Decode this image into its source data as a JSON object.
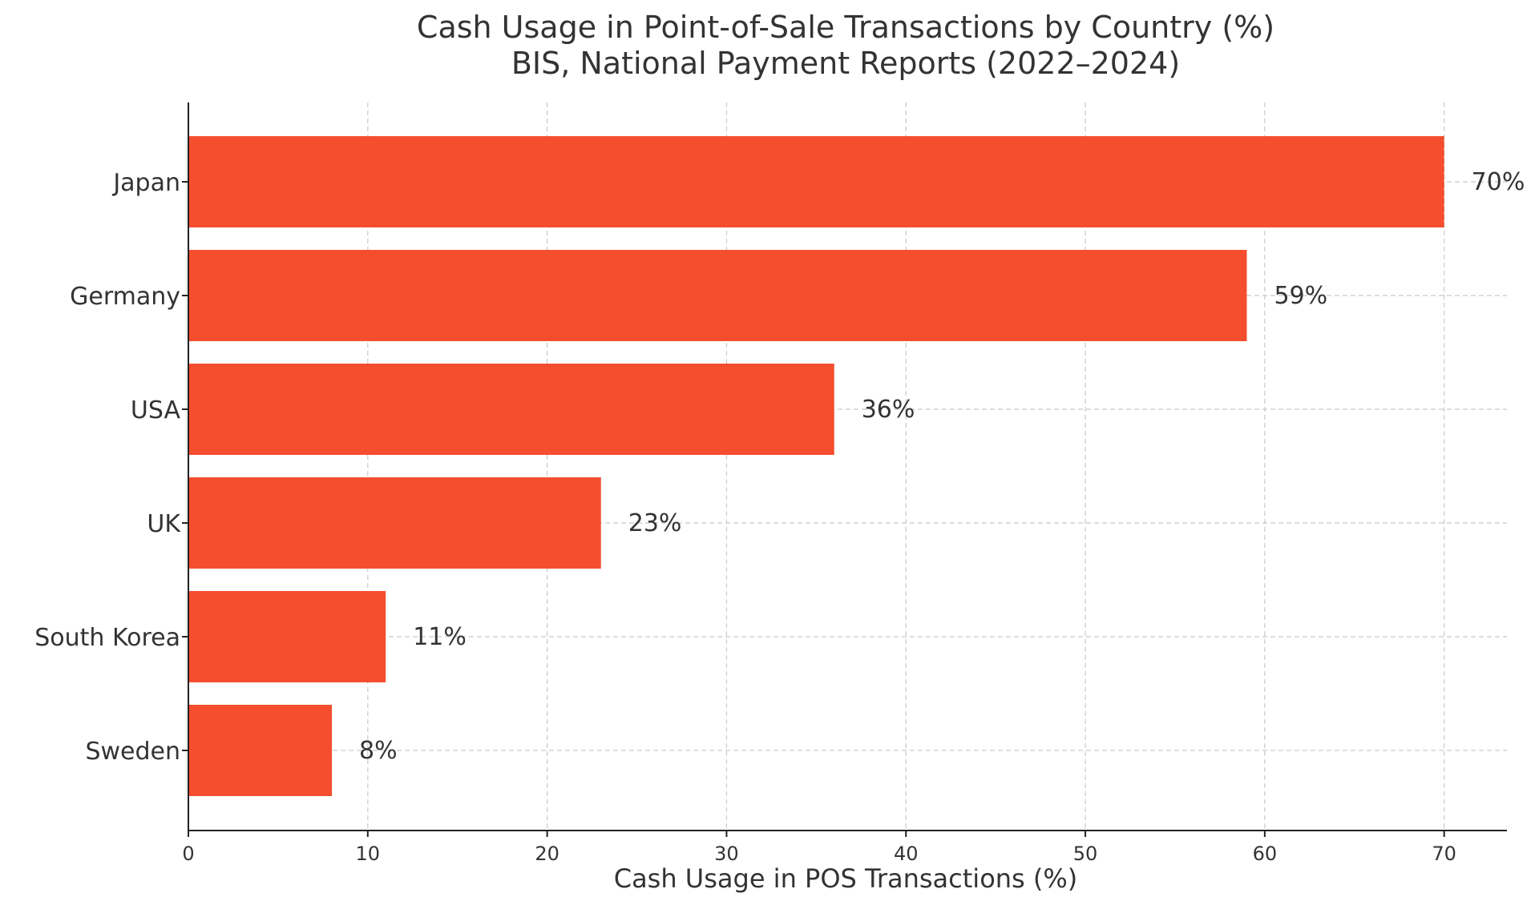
{
  "chart_data": {
    "type": "bar",
    "orientation": "horizontal",
    "title": "Cash Usage in Point-of-Sale Transactions by Country (%)",
    "subtitle": "BIS, National Payment Reports (2022–2024)",
    "xlabel": "Cash Usage in POS Transactions (%)",
    "ylabel": "",
    "categories": [
      "Japan",
      "Germany",
      "USA",
      "UK",
      "South Korea",
      "Sweden"
    ],
    "values": [
      70,
      59,
      36,
      23,
      11,
      8
    ],
    "data_labels": [
      "70%",
      "59%",
      "36%",
      "23%",
      "11%",
      "8%"
    ],
    "xlim": [
      0,
      73.5
    ],
    "xticks": [
      0,
      10,
      20,
      30,
      40,
      50,
      60,
      70
    ],
    "xtick_labels": [
      "0",
      "10",
      "20",
      "30",
      "40",
      "50",
      "60",
      "70"
    ],
    "bar_color": "#f44e2e",
    "grid": true,
    "grid_style": "dashed",
    "legend": "none"
  }
}
